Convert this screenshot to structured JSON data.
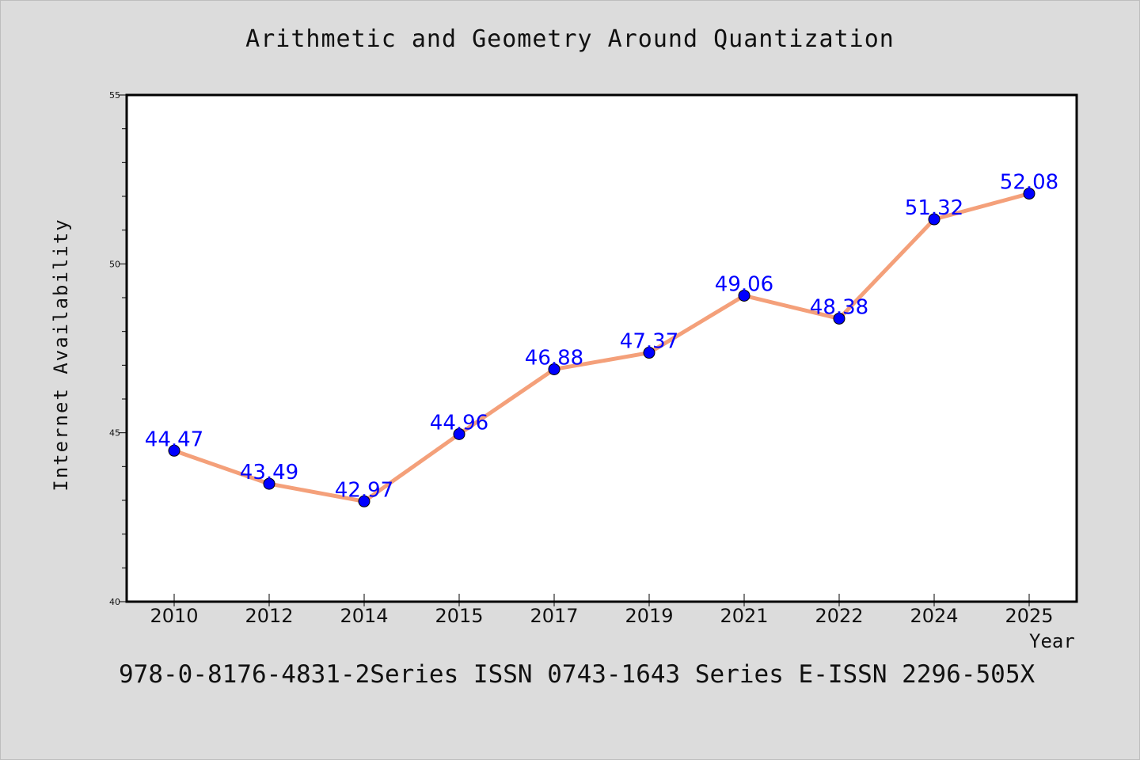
{
  "chart_data": {
    "type": "line",
    "title": "Arithmetic and Geometry Around Quantization",
    "xlabel": "Year",
    "ylabel": "Internet Availability",
    "categories": [
      "2010",
      "2012",
      "2014",
      "2015",
      "2017",
      "2019",
      "2021",
      "2022",
      "2024",
      "2025"
    ],
    "series": [
      {
        "values": [
          44.47,
          43.49,
          42.97,
          44.96,
          46.88,
          47.37,
          49.06,
          48.38,
          51.32,
          52.08
        ],
        "line_color": "#f4a07a",
        "marker_color": "#0000ff"
      }
    ],
    "data_labels": [
      "44.47",
      "43.49",
      "42.97",
      "44.96",
      "46.88",
      "47.37",
      "49.06",
      "48.38",
      "51.32",
      "52.08"
    ],
    "ylim": [
      40,
      55
    ],
    "yticks": [
      40,
      45,
      50,
      55
    ],
    "yticks_minor_step": 1,
    "grid": false,
    "legend": "none"
  },
  "footer": {
    "text": "978-0-8176-4831-2Series ISSN 0743-1643 Series E-ISSN 2296-505X"
  },
  "colors": {
    "background": "#dcdcdc",
    "plot_area": "#ffffff",
    "line": "#f4a07a",
    "marker": "#0000ff",
    "data_label": "#0000ff"
  }
}
